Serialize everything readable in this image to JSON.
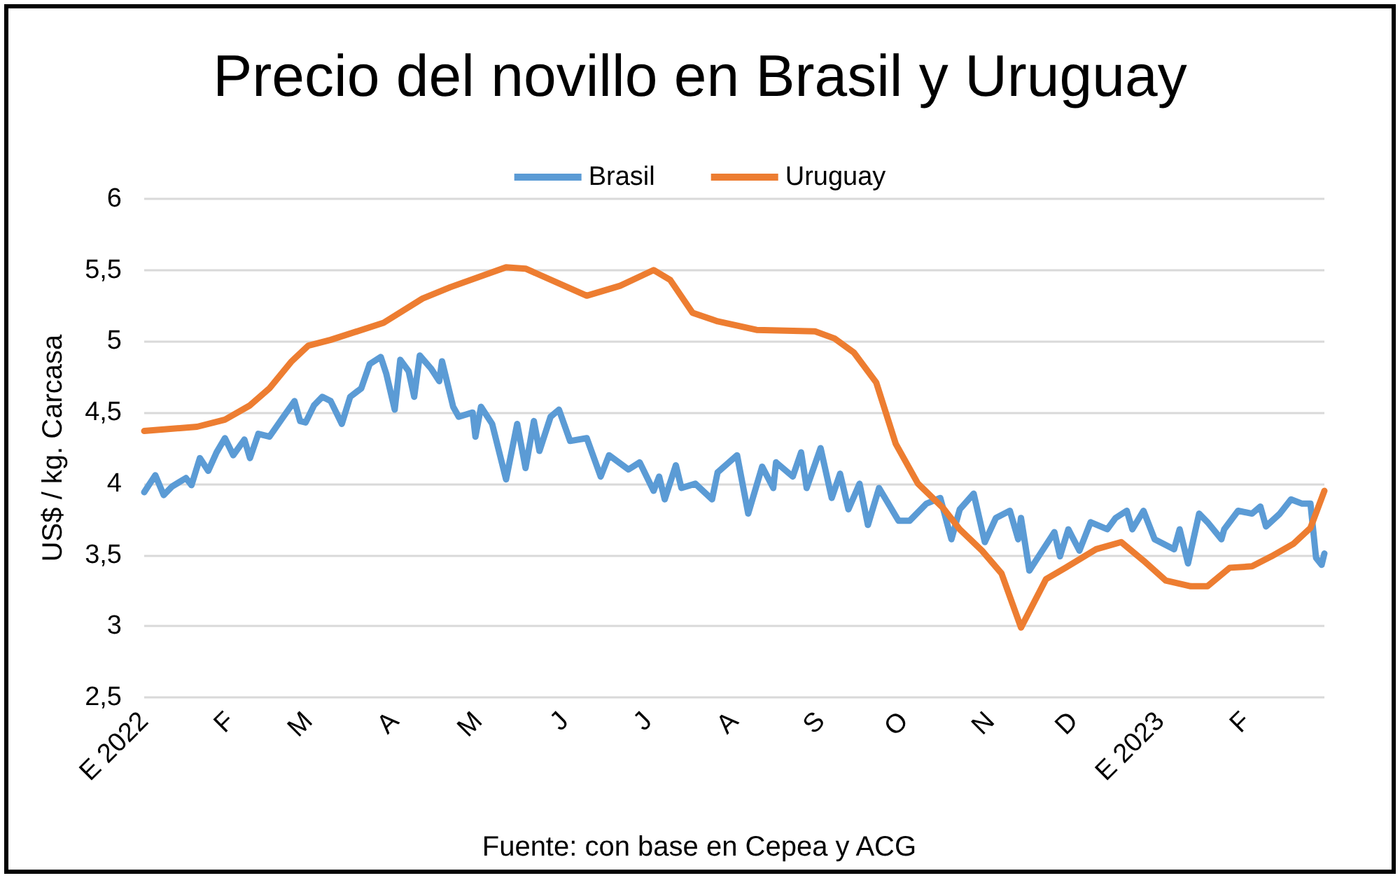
{
  "chart_data": {
    "type": "line",
    "title": "Precio del novillo en Brasil y Uruguay",
    "ylabel": "US$ / kg. Carcasa",
    "annotations": [
      "Fuente: con base en Cepea y ACG"
    ],
    "xlim": [
      "2022-01-01",
      "2023-03-01"
    ],
    "xticks": [
      {
        "value": "2022-01-01",
        "label": "E 2022"
      },
      {
        "value": "2022-02-01",
        "label": "F"
      },
      {
        "value": "2022-03-01",
        "label": "M"
      },
      {
        "value": "2022-04-01",
        "label": "A"
      },
      {
        "value": "2022-05-01",
        "label": "M"
      },
      {
        "value": "2022-06-01",
        "label": "J"
      },
      {
        "value": "2022-07-01",
        "label": "J"
      },
      {
        "value": "2022-08-01",
        "label": "A"
      },
      {
        "value": "2022-09-01",
        "label": "S"
      },
      {
        "value": "2022-10-01",
        "label": "O"
      },
      {
        "value": "2022-11-01",
        "label": "N"
      },
      {
        "value": "2022-12-01",
        "label": "D"
      },
      {
        "value": "2023-01-01",
        "label": "E 2023"
      },
      {
        "value": "2023-02-01",
        "label": "F"
      }
    ],
    "ylim": [
      2.5,
      6
    ],
    "yticks": [
      {
        "value": 2.5,
        "label": "2,5"
      },
      3,
      {
        "value": 3.5,
        "label": "3,5"
      },
      4,
      {
        "value": 4.5,
        "label": "4,5"
      },
      5,
      {
        "value": 5.5,
        "label": "5,5"
      },
      6
    ],
    "grid": "y",
    "legend": "top",
    "marker": "none",
    "line_style": "solid",
    "series": [
      {
        "name": "Brasil",
        "color": "#5b9bd5",
        "x": [
          "2022-01-01",
          "2022-01-05",
          "2022-01-08",
          "2022-01-11",
          "2022-01-16",
          "2022-01-18",
          "2022-01-21",
          "2022-01-24",
          "2022-01-27",
          "2022-01-30",
          "2022-02-02",
          "2022-02-06",
          "2022-02-08",
          "2022-02-11",
          "2022-02-15",
          "2022-02-20",
          "2022-02-24",
          "2022-02-26",
          "2022-02-28",
          "2022-03-03",
          "2022-03-06",
          "2022-03-09",
          "2022-03-13",
          "2022-03-16",
          "2022-03-20",
          "2022-03-23",
          "2022-03-27",
          "2022-03-29",
          "2022-04-01",
          "2022-04-03",
          "2022-04-06",
          "2022-04-08",
          "2022-04-10",
          "2022-04-14",
          "2022-04-17",
          "2022-04-18",
          "2022-04-22",
          "2022-04-24",
          "2022-04-29",
          "2022-04-30",
          "2022-05-02",
          "2022-05-06",
          "2022-05-11",
          "2022-05-15",
          "2022-05-18",
          "2022-05-21",
          "2022-05-23",
          "2022-05-27",
          "2022-05-30",
          "2022-06-03",
          "2022-06-09",
          "2022-06-14",
          "2022-06-17",
          "2022-06-24",
          "2022-06-28",
          "2022-07-03",
          "2022-07-05",
          "2022-07-07",
          "2022-07-11",
          "2022-07-13",
          "2022-07-18",
          "2022-07-24",
          "2022-07-26",
          "2022-08-02",
          "2022-08-06",
          "2022-08-11",
          "2022-08-15",
          "2022-08-16",
          "2022-08-22",
          "2022-08-25",
          "2022-08-27",
          "2022-09-01",
          "2022-09-05",
          "2022-09-08",
          "2022-09-11",
          "2022-09-15",
          "2022-09-18",
          "2022-09-22",
          "2022-09-29",
          "2022-10-03",
          "2022-10-09",
          "2022-10-14",
          "2022-10-18",
          "2022-10-21",
          "2022-10-26",
          "2022-10-30",
          "2022-11-03",
          "2022-11-08",
          "2022-11-11",
          "2022-11-12",
          "2022-11-15",
          "2022-11-18",
          "2022-11-24",
          "2022-11-26",
          "2022-11-29",
          "2022-12-03",
          "2022-12-07",
          "2022-12-13",
          "2022-12-16",
          "2022-12-20",
          "2022-12-22",
          "2022-12-26",
          "2022-12-30",
          "2023-01-06",
          "2023-01-08",
          "2023-01-11",
          "2023-01-15",
          "2023-01-18",
          "2023-01-23",
          "2023-01-24",
          "2023-01-29",
          "2023-02-03",
          "2023-02-06",
          "2023-02-08",
          "2023-02-13",
          "2023-02-17",
          "2023-02-21",
          "2023-02-24",
          "2023-02-26",
          "2023-02-28",
          "2023-03-01"
        ],
        "values": [
          3.94,
          4.06,
          3.92,
          3.98,
          4.04,
          3.99,
          4.18,
          4.09,
          4.22,
          4.32,
          4.2,
          4.31,
          4.18,
          4.35,
          4.33,
          4.47,
          4.58,
          4.44,
          4.43,
          4.55,
          4.61,
          4.58,
          4.42,
          4.61,
          4.67,
          4.84,
          4.89,
          4.77,
          4.52,
          4.87,
          4.79,
          4.61,
          4.9,
          4.81,
          4.72,
          4.86,
          4.54,
          4.47,
          4.5,
          4.33,
          4.54,
          4.42,
          4.03,
          4.42,
          4.11,
          4.44,
          4.23,
          4.47,
          4.52,
          4.3,
          4.32,
          4.05,
          4.2,
          4.1,
          4.15,
          3.95,
          4.05,
          3.89,
          4.13,
          3.97,
          4.0,
          3.89,
          4.08,
          4.2,
          3.79,
          4.12,
          3.97,
          4.15,
          4.05,
          4.22,
          3.97,
          4.25,
          3.9,
          4.07,
          3.82,
          4.0,
          3.71,
          3.97,
          3.74,
          3.74,
          3.86,
          3.9,
          3.61,
          3.82,
          3.93,
          3.59,
          3.76,
          3.81,
          3.61,
          3.76,
          3.39,
          3.48,
          3.66,
          3.49,
          3.68,
          3.53,
          3.73,
          3.68,
          3.76,
          3.81,
          3.68,
          3.81,
          3.61,
          3.54,
          3.68,
          3.44,
          3.79,
          3.73,
          3.61,
          3.68,
          3.81,
          3.79,
          3.84,
          3.7,
          3.79,
          3.89,
          3.86,
          3.86,
          3.48,
          3.43,
          3.51
        ]
      },
      {
        "name": "Uruguay",
        "color": "#ed7d31",
        "x": [
          "2022-01-01",
          "2022-01-20",
          "2022-01-30",
          "2022-02-08",
          "2022-02-15",
          "2022-02-23",
          "2022-03-01",
          "2022-03-09",
          "2022-03-28",
          "2022-04-11",
          "2022-04-21",
          "2022-05-11",
          "2022-05-18",
          "2022-06-09",
          "2022-06-21",
          "2022-07-03",
          "2022-07-09",
          "2022-07-17",
          "2022-07-26",
          "2022-08-09",
          "2022-08-30",
          "2022-09-06",
          "2022-09-13",
          "2022-09-21",
          "2022-09-28",
          "2022-10-06",
          "2022-10-15",
          "2022-10-21",
          "2022-10-29",
          "2022-11-05",
          "2022-11-12",
          "2022-11-21",
          "2022-11-28",
          "2022-12-09",
          "2022-12-18",
          "2022-12-26",
          "2023-01-03",
          "2023-01-12",
          "2023-01-18",
          "2023-01-26",
          "2023-02-03",
          "2023-02-10",
          "2023-02-18",
          "2023-02-24",
          "2023-03-01"
        ],
        "values": [
          4.37,
          4.4,
          4.45,
          4.55,
          4.67,
          4.86,
          4.97,
          5.01,
          5.13,
          5.3,
          5.38,
          5.52,
          5.51,
          5.32,
          5.39,
          5.5,
          5.43,
          5.2,
          5.14,
          5.08,
          5.07,
          5.02,
          4.92,
          4.71,
          4.28,
          4.0,
          3.83,
          3.68,
          3.53,
          3.37,
          2.99,
          3.33,
          3.41,
          3.54,
          3.59,
          3.46,
          3.32,
          3.28,
          3.28,
          3.41,
          3.42,
          3.49,
          3.58,
          3.69,
          3.95
        ]
      }
    ]
  }
}
